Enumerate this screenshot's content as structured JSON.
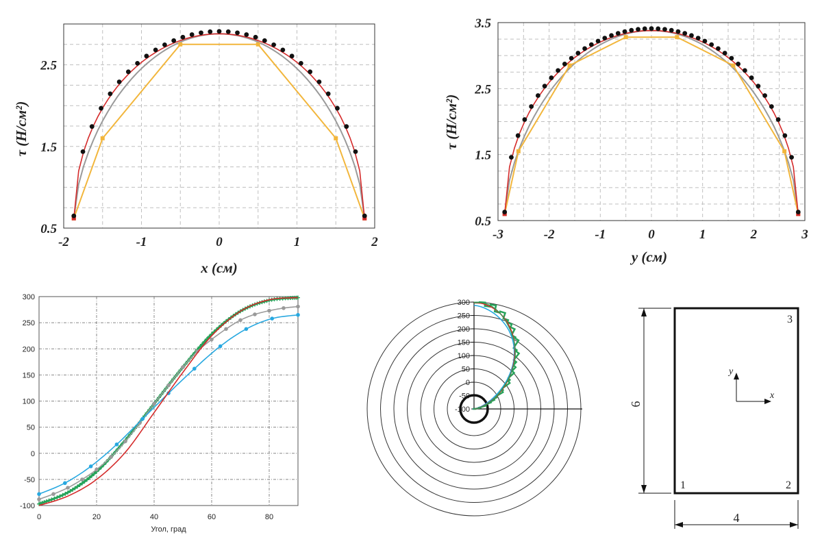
{
  "colors": {
    "red": "#d42a2a",
    "orange": "#f2b63c",
    "gray": "#9a9a9a",
    "black": "#111111",
    "blue": "#27a8e0",
    "green": "#27a35a",
    "grid": "#bfbfbf"
  },
  "chart_data": [
    {
      "type": "line",
      "id": "tau-x",
      "xlabel": "x (см)",
      "ylabel": "τ (Н/см²)",
      "xlim": [
        -2,
        2
      ],
      "ylim": [
        0.5,
        3.0
      ],
      "x_ticks": [
        -2,
        -1,
        0,
        1,
        2
      ],
      "x_tick_labels": [
        "-2",
        "-1",
        "0",
        "1",
        "2"
      ],
      "y_ticks": [
        0.5,
        1.5,
        2.5
      ],
      "y_tick_labels": [
        "0.5",
        "1.5",
        "2.5"
      ],
      "half_width": 1.87,
      "peak": 2.88,
      "floor": 0.62,
      "series": [
        {
          "name": "exact",
          "style": "line",
          "color": "red"
        },
        {
          "name": "fine",
          "style": "line",
          "color": "gray"
        },
        {
          "name": "coarse",
          "style": "line",
          "color": "orange",
          "x": [
            -1.87,
            -1.5,
            -0.5,
            0.5,
            1.5,
            1.87
          ],
          "y": [
            0.62,
            1.6,
            2.75,
            2.75,
            1.6,
            0.62
          ]
        },
        {
          "name": "points",
          "style": "dots",
          "color": "black",
          "n": 33
        }
      ]
    },
    {
      "type": "line",
      "id": "tau-y",
      "xlabel": "y (см)",
      "ylabel": "τ (Н/см²)",
      "xlim": [
        -3,
        3
      ],
      "ylim": [
        0.5,
        3.5
      ],
      "x_ticks": [
        -3,
        -2,
        -1,
        0,
        1,
        2,
        3
      ],
      "x_tick_labels": [
        "-3",
        "-2",
        "-1",
        "0",
        "1",
        "2",
        "3"
      ],
      "y_ticks": [
        0.5,
        1.5,
        2.5,
        3.5
      ],
      "y_tick_labels": [
        "0.5",
        "1.5",
        "2.5",
        "3.5"
      ],
      "half_width": 2.87,
      "peak": 3.38,
      "floor": 0.6,
      "series": [
        {
          "name": "exact",
          "style": "line",
          "color": "red"
        },
        {
          "name": "fine",
          "style": "line",
          "color": "gray"
        },
        {
          "name": "coarse",
          "style": "line",
          "color": "orange",
          "x": [
            -2.87,
            -2.6,
            -1.6,
            -0.5,
            0.5,
            1.6,
            2.6,
            2.87
          ],
          "y": [
            0.6,
            1.55,
            2.85,
            3.28,
            3.28,
            2.85,
            1.55,
            0.6
          ]
        },
        {
          "name": "points",
          "style": "dots",
          "color": "black",
          "n": 45
        }
      ]
    },
    {
      "type": "line",
      "id": "angle",
      "xlabel": "Угол, град",
      "ylabel": "",
      "xlim": [
        0,
        90
      ],
      "ylim": [
        -100,
        300
      ],
      "x_ticks": [
        0,
        20,
        40,
        60,
        80
      ],
      "x_tick_labels": [
        "0",
        "20",
        "40",
        "60",
        "80"
      ],
      "y_ticks": [
        -100,
        -50,
        0,
        50,
        100,
        150,
        200,
        250,
        300
      ],
      "y_tick_labels": [
        "-100",
        "-50",
        "0",
        "50",
        "100",
        "150",
        "200",
        "250",
        "300"
      ],
      "series": [
        {
          "name": "red",
          "color": "red",
          "style": "line",
          "x": [
            0,
            10,
            20,
            30,
            40,
            50,
            60,
            70,
            80,
            90
          ],
          "y": [
            -100,
            -82,
            -50,
            2,
            78,
            155,
            225,
            272,
            294,
            298
          ]
        },
        {
          "name": "green",
          "color": "green",
          "style": "dense-markers",
          "x": [
            0,
            10,
            20,
            30,
            40,
            50,
            60,
            70,
            80,
            90
          ],
          "y": [
            -97,
            -75,
            -35,
            25,
            95,
            165,
            228,
            272,
            293,
            298
          ]
        },
        {
          "name": "gray",
          "color": "gray",
          "style": "markers",
          "x": [
            0,
            5,
            10,
            15,
            20,
            25,
            30,
            35,
            40,
            45,
            50,
            55,
            60,
            65,
            70,
            75,
            80,
            85,
            90
          ],
          "y": [
            -88,
            -78,
            -66,
            -50,
            -31,
            -7,
            23,
            58,
            95,
            130,
            165,
            195,
            218,
            238,
            255,
            266,
            273,
            278,
            281
          ]
        },
        {
          "name": "blue",
          "color": "blue",
          "style": "markers",
          "x": [
            0,
            9,
            18,
            27,
            36,
            45,
            54,
            63,
            72,
            81,
            90
          ],
          "y": [
            -78,
            -57,
            -25,
            17,
            66,
            115,
            162,
            205,
            238,
            258,
            265
          ]
        }
      ]
    },
    {
      "type": "polar",
      "id": "polar",
      "rlim": [
        -100,
        300
      ],
      "r_ticks": [
        300,
        250,
        200,
        150,
        100,
        50,
        0,
        -50,
        -100
      ],
      "r_tick_labels": [
        "300",
        "250",
        "200",
        "150",
        "100",
        "50",
        "0",
        "-50",
        "-100"
      ],
      "series": [
        {
          "name": "red",
          "color": "red"
        },
        {
          "name": "green",
          "color": "green"
        },
        {
          "name": "blue",
          "color": "blue"
        },
        {
          "name": "teal",
          "color": "green"
        }
      ]
    }
  ],
  "diagram": {
    "height_label": "6",
    "width_label": "4",
    "corner_1": "1",
    "corner_2": "2",
    "corner_3": "3",
    "axis_x": "x",
    "axis_y": "y"
  }
}
